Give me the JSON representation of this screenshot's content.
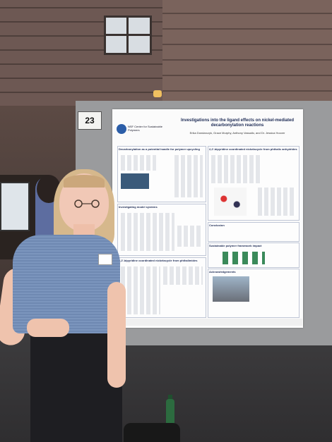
{
  "scene": {
    "description_colors": {
      "wall": "#6d5853",
      "poster_board": "#9a9b9d",
      "shirt": "#7b95bd",
      "pants": "#1e1e22"
    }
  },
  "poster": {
    "board_number": "23",
    "title": "Investigations into the ligand effects on nickel-mediated decarbonylation reactions",
    "authors": "Erika Dondarczyk, Grace Murphy, Anthony Vassallo, and Dr. Jessica Hoover",
    "logo_text": "NSF Center for Sustainable Polymers",
    "sections": [
      {
        "heading": "Decarbonylation as a potential handle for polymer upcycling"
      },
      {
        "heading": "Investigating model systems"
      },
      {
        "heading": "2,2'-bipyridine coordinated nickelacycle from phthalimides"
      },
      {
        "heading": "2,2'-bipyridine coordinated nickelacycle from phthalic anhydrides"
      },
      {
        "heading": "Conclusion"
      },
      {
        "heading": "Sustainable polymer framework impact"
      },
      {
        "heading": "Acknowledgements"
      }
    ]
  }
}
